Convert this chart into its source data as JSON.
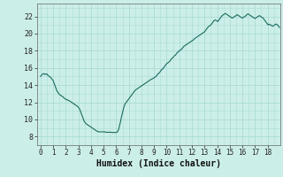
{
  "title": "",
  "xlabel": "Humidex (Indice chaleur)",
  "ylabel": "",
  "xlim": [
    -0.3,
    19.0
  ],
  "ylim": [
    7.0,
    23.5
  ],
  "xticks": [
    0,
    1,
    2,
    3,
    4,
    5,
    6,
    7,
    8,
    9,
    10,
    11,
    12,
    13,
    14,
    15,
    16,
    17,
    18
  ],
  "yticks": [
    8,
    10,
    12,
    14,
    16,
    18,
    20,
    22
  ],
  "bg_color": "#cceee8",
  "grid_color": "#aaddd6",
  "line_color": "#1a6b60",
  "line_width": 0.8,
  "x": [
    0.0,
    0.05,
    0.1,
    0.15,
    0.2,
    0.25,
    0.3,
    0.35,
    0.4,
    0.45,
    0.5,
    0.55,
    0.6,
    0.65,
    0.7,
    0.75,
    0.8,
    0.85,
    0.9,
    0.95,
    1.0,
    1.05,
    1.1,
    1.15,
    1.2,
    1.25,
    1.3,
    1.35,
    1.4,
    1.45,
    1.5,
    1.55,
    1.6,
    1.65,
    1.7,
    1.75,
    1.8,
    1.85,
    1.9,
    1.95,
    2.0,
    2.05,
    2.1,
    2.15,
    2.2,
    2.25,
    2.3,
    2.35,
    2.4,
    2.45,
    2.5,
    2.55,
    2.6,
    2.65,
    2.7,
    2.75,
    2.8,
    2.85,
    2.9,
    2.95,
    3.0,
    3.05,
    3.1,
    3.15,
    3.2,
    3.25,
    3.3,
    3.35,
    3.4,
    3.45,
    3.5,
    3.55,
    3.6,
    3.65,
    3.7,
    3.75,
    3.8,
    3.85,
    3.9,
    3.95,
    4.0,
    4.05,
    4.1,
    4.15,
    4.2,
    4.25,
    4.3,
    4.35,
    4.4,
    4.45,
    4.5,
    4.55,
    4.6,
    4.65,
    4.7,
    4.75,
    4.8,
    4.85,
    4.9,
    4.95,
    5.0,
    5.05,
    5.1,
    5.15,
    5.2,
    5.25,
    5.3,
    5.35,
    5.4,
    5.45,
    5.5,
    5.55,
    5.6,
    5.65,
    5.7,
    5.75,
    5.8,
    5.85,
    5.9,
    5.95,
    6.0,
    6.05,
    6.1,
    6.15,
    6.2,
    6.25,
    6.3,
    6.35,
    6.4,
    6.45,
    6.5,
    6.55,
    6.6,
    6.65,
    6.7,
    6.75,
    6.8,
    6.85,
    6.9,
    6.95,
    7.0,
    7.05,
    7.1,
    7.15,
    7.2,
    7.25,
    7.3,
    7.35,
    7.4,
    7.45,
    7.5,
    7.55,
    7.6,
    7.65,
    7.7,
    7.75,
    7.8,
    7.85,
    7.9,
    7.95,
    8.0,
    8.05,
    8.1,
    8.15,
    8.2,
    8.25,
    8.3,
    8.35,
    8.4,
    8.45,
    8.5,
    8.55,
    8.6,
    8.65,
    8.7,
    8.75,
    8.8,
    8.85,
    8.9,
    8.95,
    9.0,
    9.05,
    9.1,
    9.15,
    9.2,
    9.25,
    9.3,
    9.35,
    9.4,
    9.45,
    9.5,
    9.55,
    9.6,
    9.65,
    9.7,
    9.75,
    9.8,
    9.85,
    9.9,
    9.95,
    10.0,
    10.05,
    10.1,
    10.15,
    10.2,
    10.25,
    10.3,
    10.35,
    10.4,
    10.45,
    10.5,
    10.55,
    10.6,
    10.65,
    10.7,
    10.75,
    10.8,
    10.85,
    10.9,
    10.95,
    11.0,
    11.05,
    11.1,
    11.15,
    11.2,
    11.25,
    11.3,
    11.35,
    11.4,
    11.45,
    11.5,
    11.55,
    11.6,
    11.65,
    11.7,
    11.75,
    11.8,
    11.85,
    11.9,
    11.95,
    12.0,
    12.05,
    12.1,
    12.15,
    12.2,
    12.25,
    12.3,
    12.35,
    12.4,
    12.45,
    12.5,
    12.55,
    12.6,
    12.65,
    12.7,
    12.75,
    12.8,
    12.85,
    12.9,
    12.95,
    13.0,
    13.05,
    13.1,
    13.15,
    13.2,
    13.25,
    13.3,
    13.35,
    13.4,
    13.45,
    13.5,
    13.55,
    13.6,
    13.65,
    13.7,
    13.75,
    13.8,
    13.85,
    13.9,
    13.95,
    14.0,
    14.05,
    14.1,
    14.15,
    14.2,
    14.25,
    14.3,
    14.35,
    14.4,
    14.45,
    14.5,
    14.55,
    14.6,
    14.65,
    14.7,
    14.75,
    14.8,
    14.85,
    14.9,
    14.95,
    15.0,
    15.05,
    15.1,
    15.15,
    15.2,
    15.25,
    15.3,
    15.35,
    15.4,
    15.45,
    15.5,
    15.55,
    15.6,
    15.65,
    15.7,
    15.75,
    15.8,
    15.85,
    15.9,
    15.95,
    16.0,
    16.05,
    16.1,
    16.15,
    16.2,
    16.25,
    16.3,
    16.35,
    16.4,
    16.45,
    16.5,
    16.55,
    16.6,
    16.65,
    16.7,
    16.75,
    16.8,
    16.85,
    16.9,
    16.95,
    17.0,
    17.05,
    17.1,
    17.15,
    17.2,
    17.25,
    17.3,
    17.35,
    17.4,
    17.45,
    17.5,
    17.55,
    17.6,
    17.65,
    17.7,
    17.75,
    17.8,
    17.85,
    17.9,
    17.95,
    18.0,
    18.05,
    18.1,
    18.15,
    18.2,
    18.25,
    18.3,
    18.35,
    18.4,
    18.45,
    18.5,
    18.55,
    18.6,
    18.65,
    18.7,
    18.75,
    18.8,
    18.85,
    18.9,
    18.95
  ],
  "y": [
    15.0,
    15.1,
    15.2,
    15.25,
    15.3,
    15.35,
    15.3,
    15.25,
    15.3,
    15.25,
    15.3,
    15.2,
    15.1,
    15.05,
    15.0,
    14.95,
    14.9,
    14.8,
    14.7,
    14.6,
    14.5,
    14.3,
    14.1,
    13.9,
    13.7,
    13.5,
    13.3,
    13.2,
    13.1,
    13.0,
    12.9,
    12.85,
    12.8,
    12.75,
    12.7,
    12.65,
    12.6,
    12.5,
    12.45,
    12.4,
    12.35,
    12.3,
    12.3,
    12.25,
    12.2,
    12.2,
    12.15,
    12.1,
    12.05,
    12.0,
    11.95,
    11.9,
    11.85,
    11.8,
    11.75,
    11.7,
    11.65,
    11.6,
    11.55,
    11.5,
    11.4,
    11.3,
    11.2,
    11.0,
    10.8,
    10.6,
    10.4,
    10.2,
    10.0,
    9.8,
    9.7,
    9.6,
    9.5,
    9.45,
    9.4,
    9.35,
    9.3,
    9.25,
    9.2,
    9.15,
    9.1,
    9.05,
    9.0,
    8.95,
    8.9,
    8.85,
    8.8,
    8.75,
    8.7,
    8.65,
    8.6,
    8.6,
    8.55,
    8.55,
    8.55,
    8.55,
    8.55,
    8.55,
    8.55,
    8.55,
    8.55,
    8.55,
    8.55,
    8.5,
    8.5,
    8.5,
    8.5,
    8.5,
    8.5,
    8.5,
    8.5,
    8.5,
    8.5,
    8.48,
    8.48,
    8.48,
    8.48,
    8.48,
    8.48,
    8.48,
    8.48,
    8.5,
    8.55,
    8.7,
    8.9,
    9.2,
    9.5,
    9.8,
    10.2,
    10.5,
    10.8,
    11.1,
    11.4,
    11.6,
    11.8,
    11.9,
    12.0,
    12.1,
    12.2,
    12.3,
    12.4,
    12.5,
    12.6,
    12.7,
    12.8,
    12.9,
    13.0,
    13.1,
    13.2,
    13.3,
    13.4,
    13.45,
    13.5,
    13.55,
    13.6,
    13.65,
    13.7,
    13.75,
    13.8,
    13.85,
    13.9,
    13.95,
    14.0,
    14.05,
    14.1,
    14.15,
    14.2,
    14.25,
    14.3,
    14.35,
    14.4,
    14.45,
    14.5,
    14.55,
    14.6,
    14.65,
    14.7,
    14.72,
    14.75,
    14.8,
    14.85,
    14.9,
    14.95,
    15.0,
    15.1,
    15.2,
    15.3,
    15.35,
    15.4,
    15.5,
    15.6,
    15.7,
    15.8,
    15.85,
    15.9,
    16.0,
    16.1,
    16.2,
    16.3,
    16.4,
    16.5,
    16.55,
    16.6,
    16.65,
    16.7,
    16.8,
    16.9,
    17.0,
    17.1,
    17.15,
    17.2,
    17.3,
    17.4,
    17.45,
    17.5,
    17.6,
    17.7,
    17.8,
    17.85,
    17.9,
    18.0,
    18.05,
    18.1,
    18.15,
    18.2,
    18.3,
    18.4,
    18.5,
    18.55,
    18.6,
    18.65,
    18.7,
    18.75,
    18.8,
    18.85,
    18.9,
    18.95,
    19.0,
    19.05,
    19.1,
    19.15,
    19.2,
    19.25,
    19.3,
    19.4,
    19.45,
    19.5,
    19.55,
    19.6,
    19.65,
    19.7,
    19.75,
    19.8,
    19.85,
    19.9,
    19.95,
    20.0,
    20.05,
    20.1,
    20.15,
    20.2,
    20.3,
    20.4,
    20.5,
    20.6,
    20.7,
    20.8,
    20.85,
    20.9,
    20.95,
    21.0,
    21.1,
    21.2,
    21.3,
    21.4,
    21.5,
    21.55,
    21.6,
    21.55,
    21.5,
    21.45,
    21.4,
    21.5,
    21.6,
    21.7,
    21.8,
    21.9,
    22.0,
    22.1,
    22.15,
    22.2,
    22.25,
    22.3,
    22.35,
    22.3,
    22.25,
    22.2,
    22.15,
    22.1,
    22.05,
    22.0,
    21.95,
    21.9,
    21.85,
    21.8,
    21.85,
    21.9,
    21.95,
    22.0,
    22.05,
    22.1,
    22.15,
    22.2,
    22.15,
    22.1,
    22.05,
    22.0,
    21.95,
    21.9,
    21.85,
    21.8,
    21.85,
    21.9,
    21.95,
    22.0,
    22.05,
    22.1,
    22.2,
    22.25,
    22.3,
    22.25,
    22.2,
    22.15,
    22.1,
    22.05,
    22.0,
    21.95,
    21.9,
    21.85,
    21.8,
    21.75,
    21.8,
    21.85,
    21.9,
    21.95,
    22.0,
    22.05,
    22.1,
    22.05,
    22.0,
    21.95,
    21.9,
    21.85,
    21.8,
    21.7,
    21.6,
    21.5,
    21.4,
    21.3,
    21.2,
    21.1,
    21.0,
    21.05,
    21.1,
    21.05,
    21.0,
    20.95,
    20.9,
    20.85,
    20.9,
    20.95,
    21.0,
    21.05,
    21.1,
    21.1,
    21.05,
    21.0,
    20.9,
    20.8,
    20.7
  ]
}
